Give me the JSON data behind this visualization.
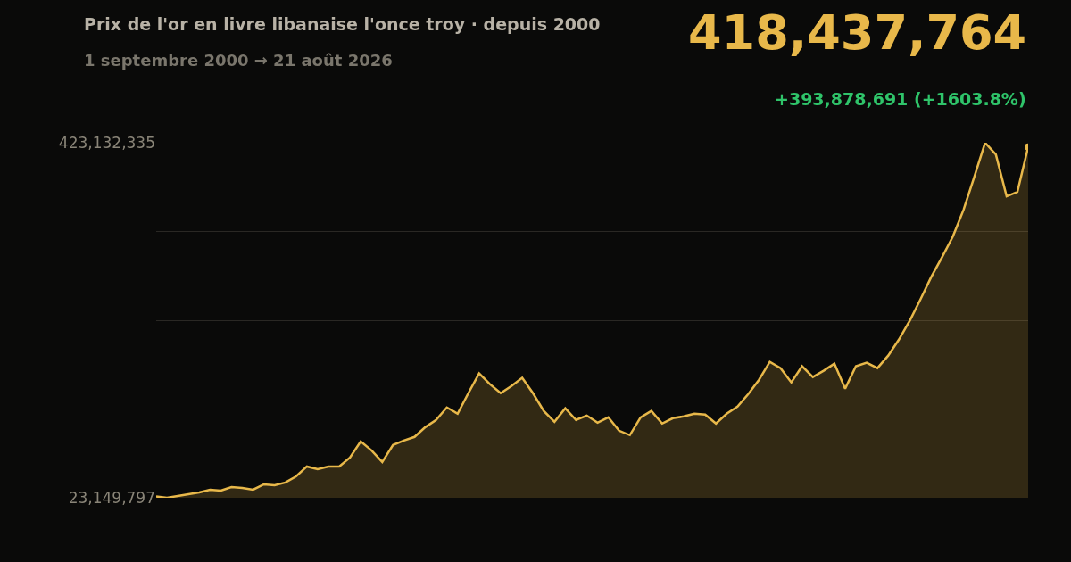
{
  "chart_data": {
    "type": "area",
    "title": "Prix de l'or en livre libanaise l'once troy · depuis 2000",
    "subtitle": "1 septembre 2000 → 21 août 2026",
    "annotations": [
      "418,437,764",
      "+393,878,691 (+1603.8%)"
    ],
    "categories": [
      null,
      null,
      null,
      null,
      null,
      null,
      null,
      null,
      null,
      null,
      null,
      null,
      null,
      null,
      null,
      null,
      null,
      null,
      null,
      null,
      null,
      null,
      null,
      null,
      null,
      null,
      null,
      null,
      null,
      null,
      null,
      null,
      null,
      null,
      null,
      null,
      null,
      null,
      null,
      null,
      null,
      null,
      null,
      null,
      null,
      null,
      null,
      null,
      null,
      null,
      null,
      null,
      null,
      null,
      null,
      null,
      null,
      null,
      null,
      null,
      null,
      null,
      null,
      null,
      null,
      null,
      null,
      null,
      null,
      null,
      null,
      null,
      null,
      null,
      null,
      null,
      null,
      null,
      null,
      null,
      null,
      null
    ],
    "values": [
      24559073,
      23149797,
      25200000,
      27200000,
      29200000,
      32200000,
      31200000,
      35200000,
      34200000,
      32200000,
      38300000,
      37300000,
      40300000,
      47300000,
      58400000,
      55400000,
      58400000,
      58400000,
      68500000,
      86600000,
      76500000,
      63500000,
      82600000,
      87600000,
      91700000,
      102700000,
      110800000,
      124900000,
      117900000,
      141000000,
      163200000,
      151100000,
      141000000,
      149100000,
      158200000,
      141000000,
      120900000,
      108800000,
      123900000,
      110800000,
      115800000,
      107800000,
      113800000,
      98700000,
      93700000,
      113800000,
      120900000,
      106800000,
      112800000,
      114800000,
      117900000,
      116800000,
      106800000,
      117900000,
      125900000,
      140000000,
      156100000,
      176300000,
      169200000,
      153100000,
      171300000,
      159200000,
      166200000,
      174300000,
      146100000,
      171300000,
      175300000,
      169200000,
      183300000,
      201500000,
      222600000,
      246800000,
      272000000,
      294200000,
      317300000,
      347600000,
      384800000,
      423132335,
      410000000,
      362700000,
      367700000,
      418437764
    ],
    "color": "#e8b84a",
    "ylim": [
      23149797,
      423132335
    ],
    "yticks": [
      {
        "value": 23149797,
        "label": "23,149,797"
      },
      {
        "value": 123145432,
        "label": null
      },
      {
        "value": 223141066,
        "label": null
      },
      {
        "value": 323136700,
        "label": null
      },
      {
        "value": 423132335,
        "label": "423,132,335"
      }
    ],
    "grid": "y",
    "tick_labels": "y"
  }
}
